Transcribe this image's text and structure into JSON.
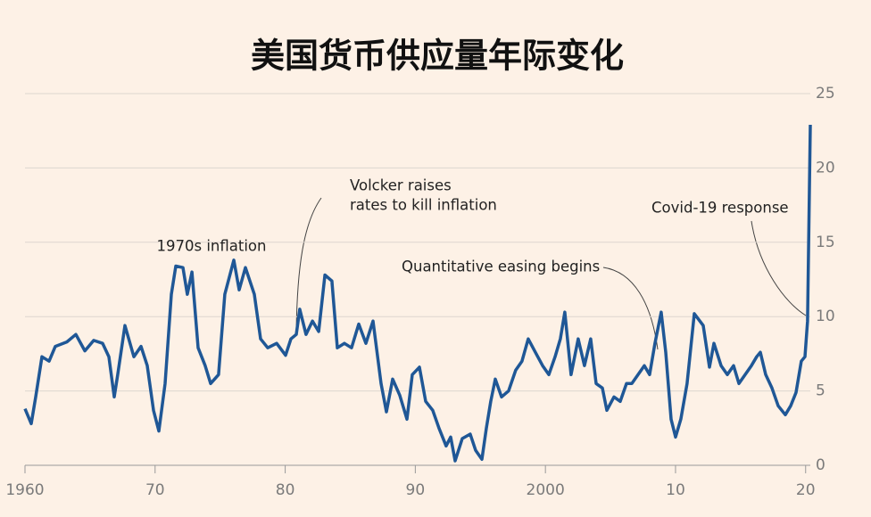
{
  "chart_data": {
    "type": "line",
    "title": "美国货币供应量年际变化",
    "annotations": [
      "1970s inflation",
      "Volcker raises",
      "rates to kill inflation",
      "Quantitative easing begins",
      "Covid-19 response"
    ],
    "color": "#1f5796",
    "x": [
      1960.0,
      1960.48,
      1960.82,
      1961.3,
      1961.85,
      1962.33,
      1963.22,
      1963.91,
      1964.6,
      1965.28,
      1965.97,
      1966.45,
      1966.86,
      1967.13,
      1967.68,
      1968.37,
      1968.92,
      1969.4,
      1969.88,
      1970.29,
      1970.77,
      1971.25,
      1971.59,
      1972.14,
      1972.48,
      1972.83,
      1973.31,
      1973.85,
      1974.27,
      1974.88,
      1975.36,
      1976.05,
      1976.46,
      1976.94,
      1977.63,
      1978.11,
      1978.66,
      1979.34,
      1980.03,
      1980.44,
      1980.85,
      1981.12,
      1981.6,
      1982.09,
      1982.57,
      1983.05,
      1983.59,
      1984.01,
      1984.55,
      1985.1,
      1985.65,
      1986.2,
      1986.75,
      1987.37,
      1987.78,
      1988.26,
      1988.81,
      1989.36,
      1989.77,
      1990.32,
      1990.8,
      1991.34,
      1991.82,
      1992.37,
      1992.72,
      1993.06,
      1993.61,
      1994.22,
      1994.64,
      1995.12,
      1995.46,
      1995.8,
      1996.15,
      1996.63,
      1997.17,
      1997.72,
      1998.2,
      1998.68,
      1999.23,
      1999.78,
      2000.26,
      2000.74,
      2001.15,
      2001.49,
      2001.97,
      2002.52,
      2003.0,
      2003.48,
      2003.9,
      2004.38,
      2004.72,
      2005.27,
      2005.75,
      2006.23,
      2006.64,
      2007.12,
      2007.6,
      2008.01,
      2008.42,
      2008.9,
      2009.25,
      2009.66,
      2010.0,
      2010.41,
      2010.89,
      2011.44,
      2012.13,
      2012.61,
      2012.95,
      2013.5,
      2013.98,
      2014.46,
      2014.87,
      2015.35,
      2015.83,
      2016.24,
      2016.52,
      2016.93,
      2017.41,
      2017.89,
      2018.44,
      2018.85,
      2019.26,
      2019.67,
      2019.95,
      2020.15,
      2020.36
    ],
    "values": [
      3.8,
      2.8,
      4.6,
      7.3,
      7.0,
      8.0,
      8.3,
      8.8,
      7.7,
      8.4,
      8.2,
      7.3,
      4.6,
      6.1,
      9.4,
      7.3,
      8.0,
      6.7,
      3.7,
      2.3,
      5.5,
      11.5,
      13.4,
      13.3,
      11.5,
      13.0,
      7.9,
      6.7,
      5.5,
      6.1,
      11.5,
      13.8,
      11.8,
      13.3,
      11.5,
      8.5,
      7.9,
      8.2,
      7.4,
      8.5,
      8.8,
      10.5,
      8.8,
      9.7,
      9.0,
      12.8,
      12.4,
      7.9,
      8.2,
      7.9,
      9.5,
      8.2,
      9.7,
      5.5,
      3.6,
      5.8,
      4.7,
      3.1,
      6.1,
      6.6,
      4.3,
      3.7,
      2.5,
      1.3,
      1.9,
      0.3,
      1.8,
      2.1,
      1.0,
      0.4,
      2.5,
      4.3,
      5.8,
      4.6,
      5.0,
      6.4,
      7.0,
      8.5,
      7.6,
      6.7,
      6.1,
      7.3,
      8.5,
      10.3,
      6.1,
      8.5,
      6.7,
      8.5,
      5.5,
      5.2,
      3.7,
      4.6,
      4.3,
      5.5,
      5.5,
      6.1,
      6.7,
      6.1,
      8.2,
      10.3,
      7.6,
      3.1,
      1.9,
      3.1,
      5.5,
      10.2,
      9.4,
      6.6,
      8.2,
      6.7,
      6.1,
      6.7,
      5.5,
      6.1,
      6.7,
      7.3,
      7.6,
      6.1,
      5.2,
      4.0,
      3.4,
      4.0,
      4.9,
      7.0,
      7.3,
      9.7,
      22.9
    ],
    "xlim": [
      1960,
      2020.36
    ],
    "xticks": [
      1960,
      {
        "value": 1970,
        "label": "70"
      },
      {
        "value": 1980,
        "label": "80"
      },
      {
        "value": 1990,
        "label": "90"
      },
      2000,
      {
        "value": 2010,
        "label": "10"
      },
      {
        "value": 2020,
        "label": "20"
      }
    ],
    "ylim": [
      0,
      25
    ],
    "yticks": [
      0,
      5,
      10,
      15,
      20,
      25
    ],
    "grid": true
  }
}
